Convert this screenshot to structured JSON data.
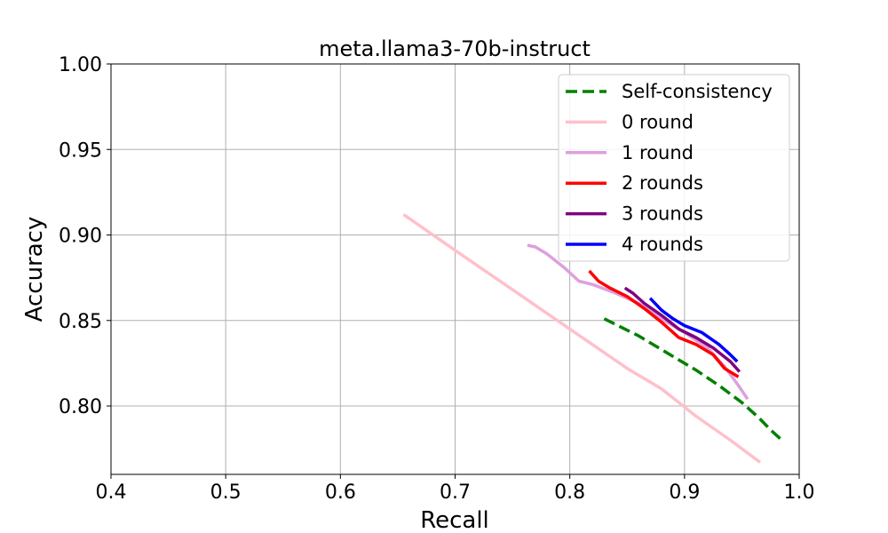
{
  "chart_data": {
    "type": "line",
    "title": "meta.llama3-70b-instruct",
    "xlabel": "Recall",
    "ylabel": "Accuracy",
    "xlim": [
      0.4,
      1.0
    ],
    "ylim": [
      0.76,
      1.0
    ],
    "xticks": [
      0.4,
      0.5,
      0.6,
      0.7,
      0.8,
      0.9,
      1.0
    ],
    "yticks": [
      0.8,
      0.85,
      0.9,
      0.95,
      1.0
    ],
    "xtick_labels": [
      "0.4",
      "0.5",
      "0.6",
      "0.7",
      "0.8",
      "0.9",
      "1.0"
    ],
    "ytick_labels": [
      "0.80",
      "0.85",
      "0.90",
      "0.95",
      "1.00"
    ],
    "grid": true,
    "legend_position": "top-right",
    "series": [
      {
        "name": "Self-consistency",
        "color": "#008000",
        "dash": true,
        "points": [
          [
            0.83,
            0.851
          ],
          [
            0.86,
            0.841
          ],
          [
            0.89,
            0.829
          ],
          [
            0.91,
            0.821
          ],
          [
            0.93,
            0.812
          ],
          [
            0.95,
            0.802
          ],
          [
            0.965,
            0.793
          ],
          [
            0.975,
            0.786
          ],
          [
            0.985,
            0.78
          ]
        ]
      },
      {
        "name": "0 round",
        "color": "#ffc0cb",
        "dash": false,
        "points": [
          [
            0.655,
            0.912
          ],
          [
            0.7,
            0.891
          ],
          [
            0.75,
            0.868
          ],
          [
            0.8,
            0.845
          ],
          [
            0.85,
            0.822
          ],
          [
            0.88,
            0.81
          ],
          [
            0.91,
            0.794
          ],
          [
            0.94,
            0.78
          ],
          [
            0.966,
            0.767
          ]
        ]
      },
      {
        "name": "1 round",
        "color": "#dda0dd",
        "dash": false,
        "points": [
          [
            0.763,
            0.894
          ],
          [
            0.77,
            0.893
          ],
          [
            0.78,
            0.889
          ],
          [
            0.795,
            0.881
          ],
          [
            0.808,
            0.873
          ],
          [
            0.82,
            0.871
          ],
          [
            0.84,
            0.866
          ],
          [
            0.86,
            0.86
          ],
          [
            0.88,
            0.851
          ],
          [
            0.9,
            0.843
          ],
          [
            0.92,
            0.834
          ],
          [
            0.935,
            0.823
          ],
          [
            0.947,
            0.812
          ],
          [
            0.955,
            0.804
          ]
        ]
      },
      {
        "name": "2 rounds",
        "color": "#ff0000",
        "dash": false,
        "points": [
          [
            0.817,
            0.879
          ],
          [
            0.825,
            0.873
          ],
          [
            0.835,
            0.869
          ],
          [
            0.85,
            0.864
          ],
          [
            0.865,
            0.857
          ],
          [
            0.88,
            0.849
          ],
          [
            0.895,
            0.84
          ],
          [
            0.91,
            0.836
          ],
          [
            0.925,
            0.83
          ],
          [
            0.935,
            0.822
          ],
          [
            0.947,
            0.817
          ]
        ]
      },
      {
        "name": "3 rounds",
        "color": "#800080",
        "dash": false,
        "points": [
          [
            0.848,
            0.869
          ],
          [
            0.855,
            0.866
          ],
          [
            0.865,
            0.86
          ],
          [
            0.88,
            0.853
          ],
          [
            0.895,
            0.845
          ],
          [
            0.91,
            0.84
          ],
          [
            0.925,
            0.834
          ],
          [
            0.94,
            0.826
          ],
          [
            0.948,
            0.82
          ]
        ]
      },
      {
        "name": "4 rounds",
        "color": "#0000ff",
        "dash": false,
        "points": [
          [
            0.87,
            0.863
          ],
          [
            0.88,
            0.856
          ],
          [
            0.89,
            0.851
          ],
          [
            0.9,
            0.847
          ],
          [
            0.915,
            0.843
          ],
          [
            0.93,
            0.836
          ],
          [
            0.94,
            0.83
          ],
          [
            0.946,
            0.826
          ]
        ]
      }
    ]
  }
}
